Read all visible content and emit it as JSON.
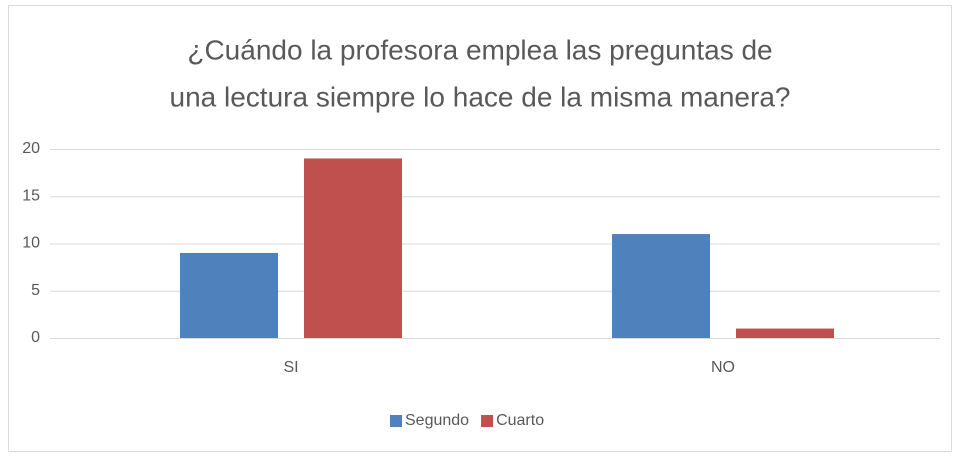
{
  "chart_data": {
    "type": "bar",
    "title": [
      "¿Cuándo la profesora emplea las preguntas de",
      "una lectura siempre lo hace de la misma manera?"
    ],
    "categories": [
      "SI",
      "NO"
    ],
    "series": [
      {
        "name": "Segundo",
        "color": "#4f81bd",
        "values": [
          9,
          11
        ]
      },
      {
        "name": "Cuarto",
        "color": "#c0504d",
        "values": [
          19,
          1
        ]
      }
    ],
    "ylim": [
      0,
      20
    ],
    "yticks": [
      0,
      5,
      10,
      15,
      20
    ],
    "grid": true,
    "legend": "bottom"
  }
}
